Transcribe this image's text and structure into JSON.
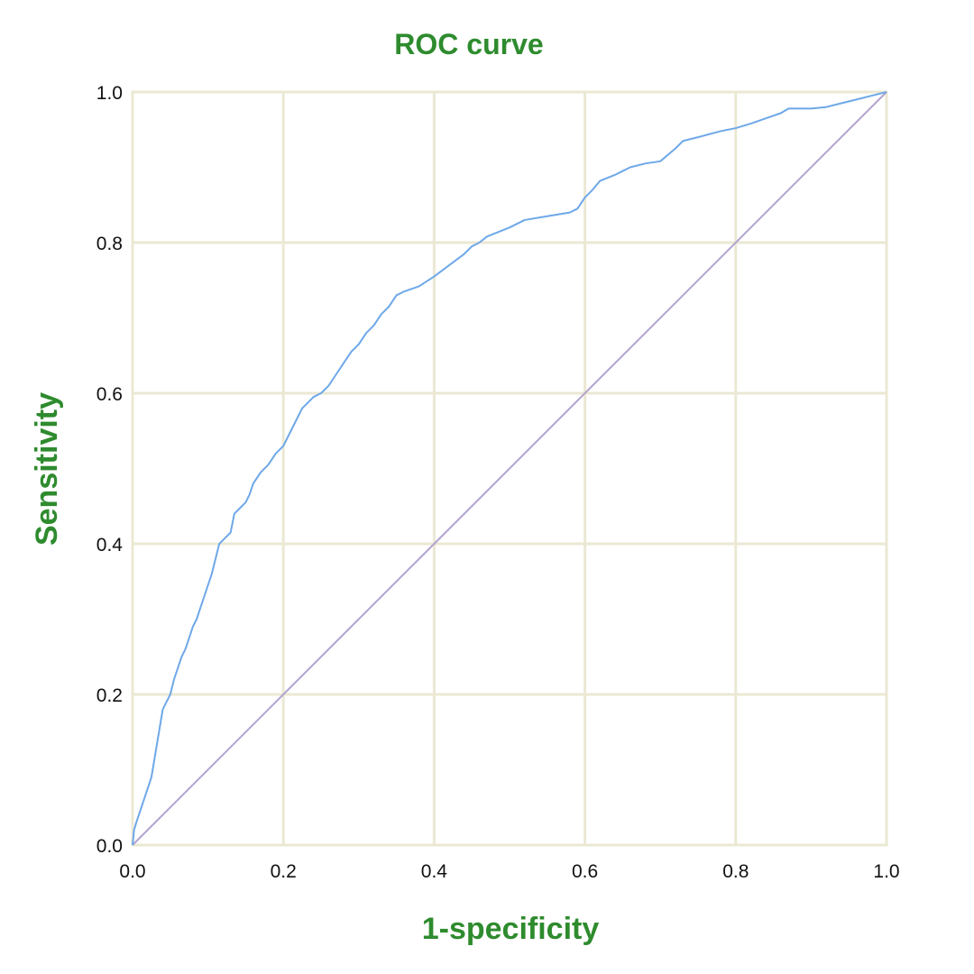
{
  "chart_data": {
    "type": "line",
    "title": "ROC curve",
    "xlabel": "1-specificity",
    "ylabel": "Sensitivity",
    "xlim": [
      0.0,
      1.0
    ],
    "ylim": [
      0.0,
      1.0
    ],
    "xticks": [
      "0.0",
      "0.2",
      "0.4",
      "0.6",
      "0.8",
      "1.0"
    ],
    "yticks": [
      "0.0",
      "0.2",
      "0.4",
      "0.6",
      "0.8",
      "1.0"
    ],
    "grid": true,
    "colors": {
      "title": "#2e8b2e",
      "grid": "#ebe8d3",
      "roc_line": "#6ea8e8",
      "reference_line": "#b3a3cf"
    },
    "series": [
      {
        "x": [
          0.0,
          0.002,
          0.005,
          0.01,
          0.015,
          0.02,
          0.025,
          0.03,
          0.035,
          0.04,
          0.045,
          0.05,
          0.055,
          0.06,
          0.065,
          0.07,
          0.075,
          0.08,
          0.085,
          0.09,
          0.095,
          0.1,
          0.105,
          0.11,
          0.115,
          0.12,
          0.125,
          0.13,
          0.135,
          0.14,
          0.145,
          0.15,
          0.155,
          0.16,
          0.17,
          0.18,
          0.19,
          0.2,
          0.21,
          0.22,
          0.225,
          0.23,
          0.24,
          0.25,
          0.26,
          0.27,
          0.28,
          0.29,
          0.3,
          0.31,
          0.32,
          0.33,
          0.335,
          0.34,
          0.35,
          0.36,
          0.38,
          0.4,
          0.42,
          0.44,
          0.45,
          0.46,
          0.47,
          0.48,
          0.5,
          0.52,
          0.55,
          0.58,
          0.59,
          0.6,
          0.61,
          0.62,
          0.64,
          0.65,
          0.66,
          0.68,
          0.7,
          0.72,
          0.73,
          0.75,
          0.78,
          0.8,
          0.82,
          0.84,
          0.86,
          0.87,
          0.9,
          0.92,
          0.94,
          0.96,
          0.98,
          1.0
        ],
        "y": [
          0.0,
          0.02,
          0.03,
          0.045,
          0.06,
          0.075,
          0.09,
          0.12,
          0.15,
          0.18,
          0.19,
          0.2,
          0.22,
          0.235,
          0.25,
          0.26,
          0.275,
          0.29,
          0.3,
          0.315,
          0.33,
          0.345,
          0.36,
          0.38,
          0.4,
          0.405,
          0.41,
          0.415,
          0.44,
          0.445,
          0.45,
          0.455,
          0.465,
          0.48,
          0.495,
          0.505,
          0.52,
          0.53,
          0.55,
          0.57,
          0.58,
          0.585,
          0.595,
          0.6,
          0.61,
          0.625,
          0.64,
          0.655,
          0.665,
          0.68,
          0.69,
          0.705,
          0.71,
          0.715,
          0.73,
          0.735,
          0.742,
          0.755,
          0.77,
          0.785,
          0.795,
          0.8,
          0.808,
          0.812,
          0.82,
          0.83,
          0.835,
          0.84,
          0.845,
          0.86,
          0.87,
          0.882,
          0.89,
          0.895,
          0.9,
          0.905,
          0.908,
          0.925,
          0.935,
          0.94,
          0.948,
          0.952,
          0.958,
          0.965,
          0.972,
          0.978,
          0.978,
          0.98,
          0.985,
          0.99,
          0.995,
          1.0
        ]
      },
      {
        "x": [
          0.0,
          1.0
        ],
        "y": [
          0.0,
          1.0
        ]
      }
    ]
  }
}
